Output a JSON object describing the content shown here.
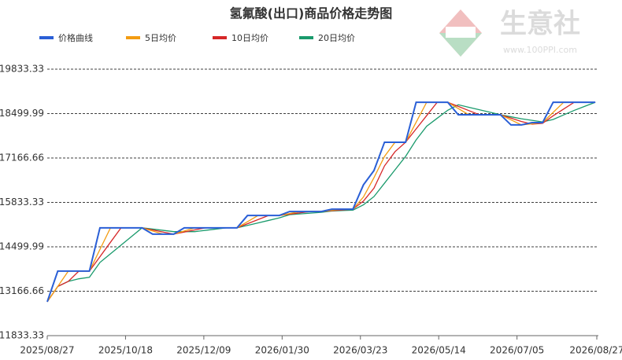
{
  "chart_data": {
    "type": "line",
    "title": "氢氟酸(出口)商品价格走势图",
    "watermark": {
      "name": "生意社",
      "url": "www.100PPI.com"
    },
    "x": [
      "2025/08/27",
      "2025/09/03",
      "2025/09/10",
      "2025/09/17",
      "2025/09/24",
      "2025/10/01",
      "2025/10/08",
      "2025/10/15",
      "2025/10/22",
      "2025/10/29",
      "2025/11/05",
      "2025/11/12",
      "2025/11/19",
      "2025/11/26",
      "2025/12/03",
      "2025/12/10",
      "2025/12/17",
      "2025/12/24",
      "2025/12/31",
      "2026/01/07",
      "2026/01/14",
      "2026/01/21",
      "2026/01/28",
      "2026/02/04",
      "2026/02/11",
      "2026/02/18",
      "2026/02/25",
      "2026/03/04",
      "2026/03/11",
      "2026/03/18",
      "2026/03/25",
      "2026/04/01",
      "2026/04/08",
      "2026/04/15",
      "2026/04/22",
      "2026/04/29",
      "2026/05/06",
      "2026/05/13",
      "2026/05/20",
      "2026/05/27",
      "2026/06/03",
      "2026/06/10",
      "2026/06/17",
      "2026/06/24",
      "2026/07/01",
      "2026/07/08",
      "2026/07/15",
      "2026/07/22",
      "2026/07/29",
      "2026/08/05",
      "2026/08/12",
      "2026/08/19",
      "2026/08/26"
    ],
    "series": [
      {
        "name": "价格曲线",
        "color": "#2a5fd6",
        "width": 2,
        "values": [
          12850,
          13770,
          13770,
          13770,
          13770,
          15070,
          15070,
          15070,
          15070,
          15070,
          14880,
          14880,
          14880,
          15070,
          15070,
          15070,
          15070,
          15070,
          15070,
          15440,
          15440,
          15440,
          15440,
          15560,
          15560,
          15560,
          15560,
          15630,
          15630,
          15630,
          16360,
          16790,
          17640,
          17640,
          17640,
          18840,
          18840,
          18840,
          18840,
          18465,
          18465,
          18465,
          18465,
          18465,
          18160,
          18160,
          18230,
          18230,
          18840,
          18840,
          18840,
          18840,
          18840
        ]
      },
      {
        "name": "5日均价",
        "color": "#f39c12",
        "width": 1.3,
        "values": [
          12850,
          13310,
          13770,
          13770,
          13770,
          14420,
          15070,
          15070,
          15070,
          15070,
          14975,
          14880,
          14880,
          14975,
          15070,
          15070,
          15070,
          15070,
          15070,
          15255,
          15440,
          15440,
          15440,
          15500,
          15560,
          15560,
          15560,
          15595,
          15630,
          15630,
          15995,
          16575,
          17215,
          17640,
          17640,
          18240,
          18840,
          18840,
          18840,
          18653,
          18465,
          18465,
          18465,
          18465,
          18313,
          18160,
          18195,
          18230,
          18535,
          18840,
          18840,
          18840,
          18840
        ]
      },
      {
        "name": "10日均价",
        "color": "#d62728",
        "width": 1.3,
        "values": [
          12850,
          13310,
          13463,
          13770,
          13770,
          14203,
          14637,
          15070,
          15070,
          15070,
          15007,
          14943,
          14880,
          14943,
          15007,
          15070,
          15070,
          15070,
          15070,
          15193,
          15317,
          15440,
          15440,
          15480,
          15520,
          15560,
          15560,
          15583,
          15607,
          15630,
          15873,
          16260,
          16930,
          17357,
          17640,
          18040,
          18440,
          18840,
          18840,
          18715,
          18590,
          18465,
          18465,
          18465,
          18363,
          18262,
          18183,
          18207,
          18433,
          18637,
          18840,
          18840,
          18840
        ]
      },
      {
        "name": "20日均价",
        "color": "#1a9a6c",
        "width": 1.3,
        "values": [
          12850,
          13310,
          13463,
          13540,
          13586,
          14030,
          14290,
          14550,
          14810,
          15070,
          15032,
          14994,
          14956,
          14956,
          14956,
          14994,
          15032,
          15070,
          15070,
          15144,
          15218,
          15292,
          15366,
          15464,
          15488,
          15512,
          15536,
          15574,
          15588,
          15602,
          15762,
          16008,
          16410,
          16812,
          17214,
          17710,
          18120,
          18360,
          18600,
          18765,
          18690,
          18615,
          18540,
          18465,
          18404,
          18343,
          18296,
          18249,
          18324,
          18460,
          18596,
          18718,
          18840
        ]
      }
    ],
    "xlim": [
      "2025/08/27",
      "2026/08/27"
    ],
    "xticks": [
      "2025/08/27",
      "2025/10/18",
      "2025/12/09",
      "2026/01/30",
      "2026/03/23",
      "2026/05/14",
      "2026/07/05",
      "2026/08/27"
    ],
    "ylim": [
      11833.33,
      19833.33
    ],
    "yticks": [
      11833.33,
      13166.66,
      14499.99,
      15833.33,
      17166.66,
      18499.99,
      19833.33
    ],
    "grid": true
  }
}
